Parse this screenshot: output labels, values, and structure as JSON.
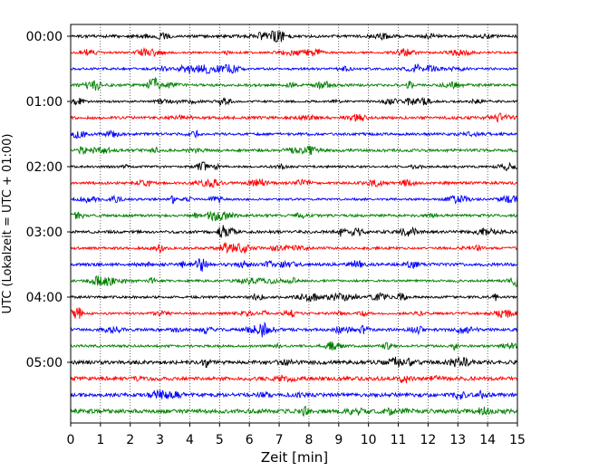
{
  "chart_data": {
    "type": "line",
    "title": "",
    "xlabel": "Zeit  [min]",
    "ylabel": "UTC (Lokalzeit = UTC + 01:00)",
    "xlim": [
      0,
      15
    ],
    "x_ticks": [
      "0",
      "1",
      "2",
      "3",
      "4",
      "5",
      "6",
      "7",
      "8",
      "9",
      "10",
      "11",
      "12",
      "13",
      "14",
      "15"
    ],
    "y_tick_labels": [
      "00:00",
      "01:00",
      "02:00",
      "03:00",
      "04:00",
      "05:00"
    ],
    "grid": "vertical dotted",
    "trace_interval_minutes": 15,
    "trace_count": 24,
    "trace_color_cycle": [
      "#000000",
      "#ff0000",
      "#0000ff",
      "#008000"
    ],
    "series": [
      {
        "start": "00:00"
      },
      {
        "start": "00:15"
      },
      {
        "start": "00:30"
      },
      {
        "start": "00:45"
      },
      {
        "start": "01:00"
      },
      {
        "start": "01:15"
      },
      {
        "start": "01:30"
      },
      {
        "start": "01:45"
      },
      {
        "start": "02:00"
      },
      {
        "start": "02:15"
      },
      {
        "start": "02:30"
      },
      {
        "start": "02:45"
      },
      {
        "start": "03:00"
      },
      {
        "start": "03:15"
      },
      {
        "start": "03:30"
      },
      {
        "start": "03:45"
      },
      {
        "start": "04:00"
      },
      {
        "start": "04:15"
      },
      {
        "start": "04:30"
      },
      {
        "start": "04:45"
      },
      {
        "start": "05:00"
      },
      {
        "start": "05:15"
      },
      {
        "start": "05:30"
      },
      {
        "start": "05:45"
      }
    ]
  }
}
